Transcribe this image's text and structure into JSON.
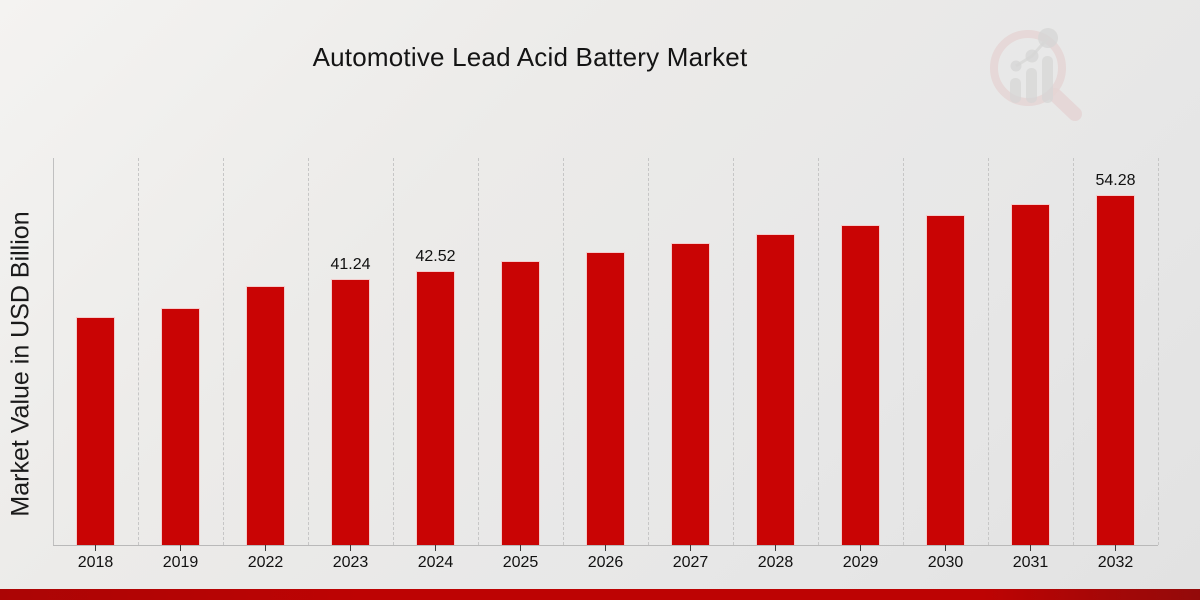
{
  "header": {
    "title": "Automotive Lead Acid Battery Market"
  },
  "y_axis": {
    "label": "Market Value in USD Billion"
  },
  "colors": {
    "bar": "#c90404",
    "accent_band": "#bd0303",
    "grid": "#c6c6c6",
    "text": "#141414",
    "logo_ring": "#e2c4c4",
    "logo_bars": "#c9c9c9"
  },
  "logo": {
    "name": "magnifier-bar-chart-logo"
  },
  "chart_data": {
    "type": "bar",
    "title": "Automotive Lead Acid Battery Market",
    "xlabel": "",
    "ylabel": "Market Value in USD Billion",
    "categories": [
      "2018",
      "2019",
      "2022",
      "2023",
      "2024",
      "2025",
      "2026",
      "2027",
      "2028",
      "2029",
      "2030",
      "2031",
      "2032"
    ],
    "values": [
      35.3,
      36.7,
      40.1,
      41.24,
      42.52,
      44.0,
      45.4,
      46.8,
      48.2,
      49.6,
      51.2,
      52.9,
      54.28
    ],
    "data_labels": [
      "",
      "",
      "",
      "41.24",
      "42.52",
      "",
      "",
      "",
      "",
      "",
      "",
      "",
      "54.28"
    ],
    "ylim": [
      0,
      60
    ],
    "grid": "vertical-dashed",
    "legend": "none",
    "bar_color": "#c90404"
  }
}
